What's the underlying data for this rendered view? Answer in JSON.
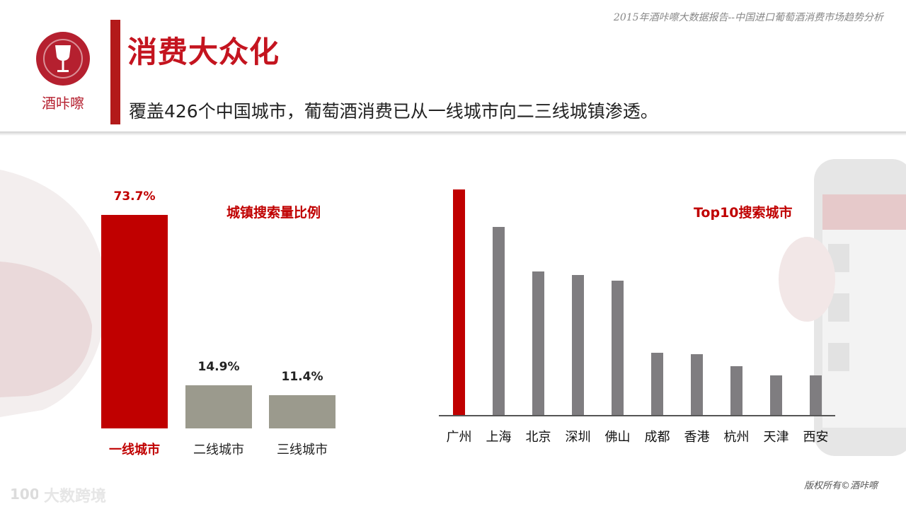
{
  "header": {
    "report_title": "2015年酒咔嚓大数据报告--中国进口葡萄酒消费市场趋势分析",
    "logo_text": "酒咔嚓",
    "title": "消费大众化",
    "subtitle": "覆盖426个中国城市，葡萄酒消费已从一线城市向二三线城镇渗透。"
  },
  "colors": {
    "brand_red": "#c00000",
    "highlight_bar": "#c00000",
    "tier_bar": "#9b9a8d",
    "city_bar": "#7f7d80"
  },
  "chart_data": [
    {
      "type": "bar",
      "title": "城镇搜索量比例",
      "categories": [
        "一线城市",
        "二线城市",
        "三线城市"
      ],
      "values": [
        73.7,
        14.9,
        11.4
      ],
      "value_labels": [
        "73.7%",
        "14.9%",
        "11.4%"
      ],
      "ylim": [
        0,
        80
      ],
      "grid": false,
      "legend": "none"
    },
    {
      "type": "bar",
      "title": "Top10搜索城市",
      "categories": [
        "广州",
        "上海",
        "北京",
        "深圳",
        "佛山",
        "成都",
        "香港",
        "杭州",
        "天津",
        "西安"
      ],
      "values": [
        100,
        83.5,
        63.5,
        62,
        59.5,
        27.5,
        27,
        21.5,
        17.5,
        17.5
      ],
      "ylim": [
        0,
        100
      ],
      "grid": false,
      "legend": "none"
    }
  ],
  "footer": {
    "copyright": "版权所有©酒咔嚓",
    "watermark": "大数跨境"
  }
}
